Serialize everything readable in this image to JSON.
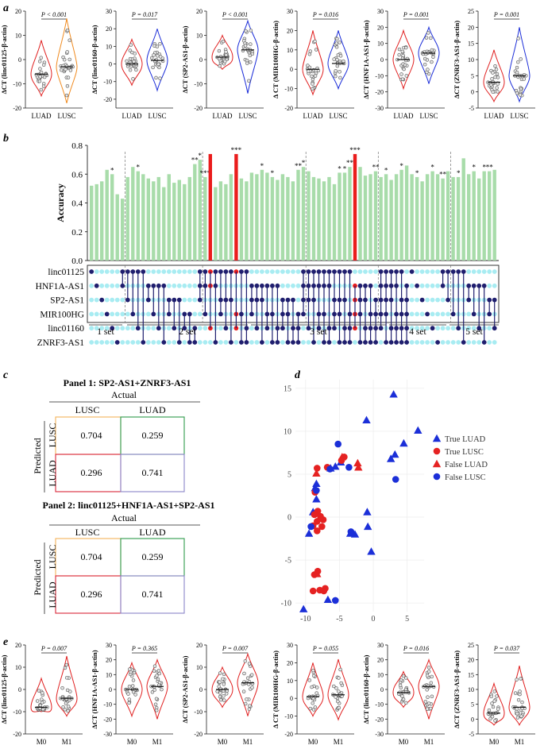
{
  "colors": {
    "lung_red": "#e02020",
    "lung_blue": "#1a2cd8",
    "lusc_orange": "#f08a1e",
    "bar_green": "#a8dcaa",
    "bar_red": "#ea1c1c",
    "dot_light": "#a8ecf2",
    "dot_dark": "#1f1e6e",
    "box_orange": "#f4b35a",
    "box_green": "#2f9a4c",
    "box_red": "#d9273a",
    "box_purple": "#8a86c8",
    "scatter_red": "#e52222",
    "scatter_blue": "#1b2fd8"
  },
  "panel_a": {
    "label": "a",
    "violins": [
      {
        "ylabel": "ΔCT (linc01125-β-actin)",
        "pvalue": "P < 0.001",
        "yticks": [
          "-20",
          "-10",
          "0",
          "10",
          "20"
        ],
        "ylim": [
          -20,
          20
        ],
        "groups": [
          "LUAD",
          "LUSC"
        ],
        "left_color": "#e02020",
        "right_color": "#f08a1e",
        "left_median": -6,
        "right_median": -3,
        "left_span": [
          -15,
          8
        ],
        "right_span": [
          -18,
          17
        ]
      },
      {
        "ylabel": "ΔCT (linc01160-β-actin)",
        "pvalue": "P = 0.017",
        "yticks": [
          "-20",
          "-10",
          "0",
          "10",
          "20",
          "30"
        ],
        "ylim": [
          -25,
          30
        ],
        "groups": [
          "LUAD",
          "LUSC"
        ],
        "left_color": "#e02020",
        "right_color": "#1a2cd8",
        "left_median": 0,
        "right_median": 2,
        "left_span": [
          -12,
          14
        ],
        "right_span": [
          -15,
          20
        ]
      },
      {
        "ylabel": "ΔCT (SP2-AS1-β-actin)",
        "pvalue": "P < 0.001",
        "yticks": [
          "-20",
          "-10",
          "0",
          "10",
          "20"
        ],
        "ylim": [
          -20,
          20
        ],
        "groups": [
          "LUAD",
          "LUSC"
        ],
        "left_color": "#e02020",
        "right_color": "#1a2cd8",
        "left_median": 1,
        "right_median": 4,
        "left_span": [
          -4,
          10
        ],
        "right_span": [
          -14,
          16
        ]
      },
      {
        "ylabel": "Δ CT (MIR100HG-β-actin)",
        "pvalue": "P = 0.016",
        "yticks": [
          "-20",
          "-10",
          "0",
          "10",
          "20",
          "30"
        ],
        "ylim": [
          -20,
          30
        ],
        "groups": [
          "LUAD",
          "LUSC"
        ],
        "left_color": "#e02020",
        "right_color": "#1a2cd8",
        "left_median": 0,
        "right_median": 3,
        "left_span": [
          -13,
          20
        ],
        "right_span": [
          -10,
          20
        ]
      },
      {
        "ylabel": "ΔCT (HNF1A-AS1-β-actin)",
        "pvalue": "P = 0.001",
        "yticks": [
          "-30",
          "-20",
          "-10",
          "0",
          "10",
          "20",
          "30"
        ],
        "ylim": [
          -30,
          30
        ],
        "groups": [
          "LUAD",
          "LUSC"
        ],
        "left_color": "#e02020",
        "right_color": "#1a2cd8",
        "left_median": 0,
        "right_median": 4,
        "left_span": [
          -18,
          18
        ],
        "right_span": [
          -15,
          20
        ]
      },
      {
        "ylabel": "ΔCT (ZNRF3-AS1-β-actin)",
        "pvalue": "P = 0.001",
        "yticks": [
          "-5",
          "0",
          "5",
          "10",
          "15",
          "20",
          "25"
        ],
        "ylim": [
          -5,
          25
        ],
        "groups": [
          "LUAD",
          "LUSC"
        ],
        "left_color": "#e02020",
        "right_color": "#1a2cd8",
        "left_median": 3,
        "right_median": 5,
        "left_span": [
          -3,
          13
        ],
        "right_span": [
          -3,
          20
        ]
      }
    ]
  },
  "panel_b": {
    "label": "b",
    "ylabel": "Accuracy",
    "yticks": [
      "0.0",
      "0.2",
      "0.4",
      "0.6",
      "0.8"
    ],
    "genes": [
      "linc01125",
      "HNF1A-AS1",
      "SP2-AS1",
      "MIR100HG",
      "linc01160",
      "ZNRF3-AS1"
    ],
    "set_labels": [
      "1 set",
      "2 set",
      "3 set",
      "4 set",
      "5 set"
    ],
    "chart_data": {
      "type": "bar",
      "title": "",
      "ylabel": "Accuracy",
      "ylim": [
        0,
        0.8
      ],
      "values": [
        0.52,
        0.53,
        0.55,
        0.63,
        0.6,
        0.46,
        0.43,
        0.58,
        0.65,
        0.62,
        0.6,
        0.57,
        0.55,
        0.58,
        0.51,
        0.6,
        0.54,
        0.56,
        0.53,
        0.58,
        0.67,
        0.7,
        0.58,
        0.74,
        0.51,
        0.55,
        0.53,
        0.6,
        0.74,
        0.57,
        0.55,
        0.61,
        0.6,
        0.63,
        0.61,
        0.58,
        0.56,
        0.6,
        0.58,
        0.55,
        0.63,
        0.65,
        0.62,
        0.58,
        0.57,
        0.55,
        0.58,
        0.53,
        0.61,
        0.61,
        0.65,
        0.74,
        0.65,
        0.59,
        0.6,
        0.62,
        0.58,
        0.6,
        0.56,
        0.6,
        0.63,
        0.66,
        0.6,
        0.58,
        0.55,
        0.6,
        0.62,
        0.6,
        0.57,
        0.62,
        0.58,
        0.58,
        0.71,
        0.6,
        0.62,
        0.57,
        0.62,
        0.62,
        0.63
      ],
      "highlighted_indices": [
        23,
        28,
        51
      ],
      "stars": {
        "4": "*",
        "9": "*",
        "20": "**",
        "21": "*",
        "22": "***",
        "28": "***",
        "33": "*",
        "35": "*",
        "40": "**",
        "41": "*",
        "48": "*",
        "49": "*",
        "50": "**",
        "51": "***",
        "55": "**",
        "57": "*",
        "60": "*",
        "63": "*",
        "66": "*",
        "68": "**",
        "71": "*",
        "74": "*",
        "76": "*",
        "77": "**"
      }
    }
  },
  "panel_c": {
    "label": "c",
    "panels": [
      {
        "title": "Panel 1: SP2-AS1+ZNRF3-AS1",
        "actual": "Actual",
        "predicted": "Predicted",
        "cols": [
          "LUSC",
          "LUAD"
        ],
        "rows": [
          "LUSC",
          "LUAD"
        ],
        "cells": [
          [
            "0.704",
            "0.259"
          ],
          [
            "0.296",
            "0.741"
          ]
        ]
      },
      {
        "title": "Panel 2: linc01125+HNF1A-AS1+SP2-AS1",
        "actual": "Actual",
        "predicted": "Predicted",
        "cols": [
          "LUSC",
          "LUAD"
        ],
        "rows": [
          "LUSC",
          "LUAD"
        ],
        "cells": [
          [
            "0.704",
            "0.259"
          ],
          [
            "0.296",
            "0.741"
          ]
        ]
      }
    ]
  },
  "panel_d": {
    "label": "d",
    "legend": [
      "True LUAD",
      "True LUSC",
      "False LUAD",
      "False LUSC"
    ],
    "chart_data": {
      "type": "scatter",
      "xticks": [
        "-10",
        "-5",
        "0",
        "5"
      ],
      "yticks": [
        "-10",
        "-5",
        "0",
        "5",
        "10",
        "15"
      ],
      "xlim": [
        -11.5,
        7.5
      ],
      "ylim": [
        -11,
        16
      ],
      "series": [
        {
          "name": "True LUAD",
          "shape": "triangle",
          "color": "#1b2fd8",
          "points": [
            [
              3,
              14.3
            ],
            [
              -1,
              11.3
            ],
            [
              6.6,
              10.1
            ],
            [
              4.5,
              8.6
            ],
            [
              3.2,
              7.3
            ],
            [
              2.6,
              6.8
            ],
            [
              -5.6,
              5.9
            ],
            [
              -6.3,
              5.7
            ],
            [
              -4.8,
              6.4
            ],
            [
              -8.4,
              3.9
            ],
            [
              -8.6,
              3.4
            ],
            [
              -8.4,
              2.1
            ],
            [
              -8.9,
              0.6
            ],
            [
              -0.9,
              0.6
            ],
            [
              -9.5,
              -1.9
            ],
            [
              -3.4,
              -1.9
            ],
            [
              -2.7,
              -2
            ],
            [
              -0.8,
              -1.1
            ],
            [
              -0.3,
              -4
            ],
            [
              -10.3,
              -10.7
            ],
            [
              -6.7,
              -9.6
            ]
          ]
        },
        {
          "name": "True LUSC",
          "shape": "circle",
          "color": "#e52222",
          "points": [
            [
              -8.3,
              5.7
            ],
            [
              -6.8,
              5.8
            ],
            [
              -4.3,
              7
            ],
            [
              -4.7,
              6.6
            ],
            [
              -8.6,
              2.9
            ],
            [
              -8.2,
              0.7
            ],
            [
              -8.7,
              0.3
            ],
            [
              -8.3,
              -0.5
            ],
            [
              -7.8,
              0.1
            ],
            [
              -7.4,
              -0.3
            ],
            [
              -8.9,
              -1
            ],
            [
              -8.3,
              -1.6
            ],
            [
              -7.6,
              -1.1
            ],
            [
              -8.7,
              -6.7
            ],
            [
              -8.2,
              -6.3
            ],
            [
              -8.9,
              -8.6
            ],
            [
              -7.9,
              -8.5
            ],
            [
              -7.3,
              -8.6
            ],
            [
              -7.1,
              -8.3
            ]
          ]
        },
        {
          "name": "False LUAD",
          "shape": "triangle",
          "color": "#e52222",
          "points": [
            [
              -8.4,
              5.1
            ],
            [
              -4.6,
              7
            ],
            [
              -2.2,
              5.8
            ],
            [
              -2.3,
              6.3
            ],
            [
              -8.3,
              -6.6
            ]
          ]
        },
        {
          "name": "False LUSC",
          "shape": "circle",
          "color": "#1b2fd8",
          "points": [
            [
              -5.2,
              8.5
            ],
            [
              -6.4,
              5.6
            ],
            [
              -3.6,
              5.8
            ],
            [
              -8.4,
              3.1
            ],
            [
              -9.2,
              -1.1
            ],
            [
              -3.3,
              -1.7
            ],
            [
              -5.6,
              -9.7
            ],
            [
              3.3,
              4.4
            ]
          ]
        }
      ]
    }
  },
  "panel_e": {
    "label": "e",
    "violins": [
      {
        "ylabel": "ΔCT (linc01125-β-actin)",
        "pvalue": "P = 0.007",
        "yticks": [
          "-20",
          "-10",
          "0",
          "10",
          "20"
        ],
        "ylim": [
          -20,
          20
        ],
        "groups": [
          "M0",
          "M1"
        ],
        "left_median": -8,
        "right_median": -4,
        "left_span": [
          -10,
          5
        ],
        "right_span": [
          -12,
          15
        ]
      },
      {
        "ylabel": "ΔCT (HNF1A-AS1-β-actin)",
        "pvalue": "P = 0.365",
        "yticks": [
          "-30",
          "-20",
          "-10",
          "0",
          "10",
          "20",
          "30"
        ],
        "ylim": [
          -30,
          30
        ],
        "groups": [
          "M0",
          "M1"
        ],
        "left_median": 0,
        "right_median": 2,
        "left_span": [
          -18,
          18
        ],
        "right_span": [
          -20,
          20
        ]
      },
      {
        "ylabel": "ΔCT (SP2-AS1-β-actin)",
        "pvalue": "P = 0.007",
        "yticks": [
          "-20",
          "-10",
          "0",
          "10",
          "20"
        ],
        "ylim": [
          -20,
          20
        ],
        "groups": [
          "M0",
          "M1"
        ],
        "left_median": 0,
        "right_median": 3,
        "left_span": [
          -8,
          10
        ],
        "right_span": [
          -12,
          16
        ]
      },
      {
        "ylabel": "Δ CT (MIR100HG-β-actin)",
        "pvalue": "P = 0.055",
        "yticks": [
          "-20",
          "-10",
          "0",
          "10",
          "20",
          "30"
        ],
        "ylim": [
          -20,
          30
        ],
        "groups": [
          "M0",
          "M1"
        ],
        "left_median": 1,
        "right_median": 2,
        "left_span": [
          -10,
          20
        ],
        "right_span": [
          -12,
          22
        ]
      },
      {
        "ylabel": "ΔCT (linc01160-β-actin)",
        "pvalue": "P = 0.016",
        "yticks": [
          "-30",
          "-20",
          "-10",
          "0",
          "10",
          "20",
          "30"
        ],
        "ylim": [
          -30,
          30
        ],
        "groups": [
          "M0",
          "M1"
        ],
        "left_median": -2,
        "right_median": 2,
        "left_span": [
          -12,
          12
        ],
        "right_span": [
          -20,
          20
        ]
      },
      {
        "ylabel": "ΔCT (ZNRF3-AS1-β-actin)",
        "pvalue": "P = 0.037",
        "yticks": [
          "-5",
          "0",
          "5",
          "10",
          "15",
          "20",
          "25"
        ],
        "ylim": [
          -5,
          25
        ],
        "groups": [
          "M0",
          "M1"
        ],
        "left_median": 2,
        "right_median": 4,
        "left_span": [
          -2,
          12
        ],
        "right_span": [
          -2,
          18
        ]
      }
    ]
  }
}
